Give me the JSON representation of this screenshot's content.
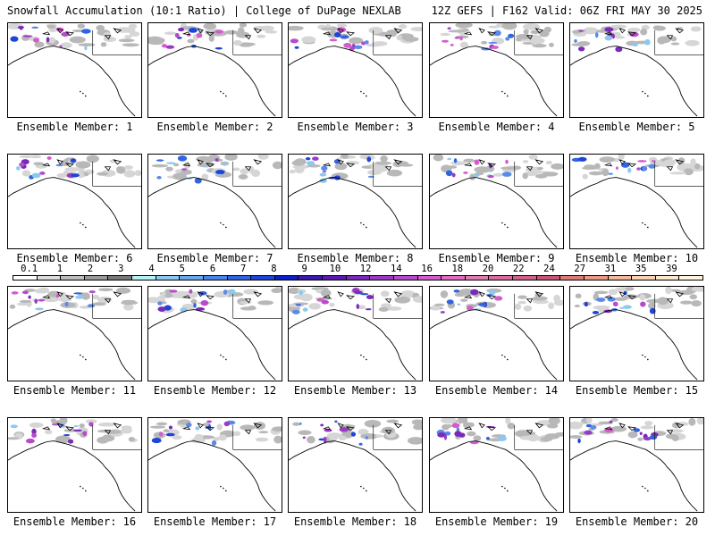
{
  "header": {
    "left_title": "Snowfall Accumulation (10:1 Ratio) | College of DuPage NEXLAB",
    "right_title": "12Z GEFS | F162 Valid: 06Z FRI MAY 30 2025"
  },
  "panels": [
    {
      "label": "Ensemble Member: 1"
    },
    {
      "label": "Ensemble Member: 2"
    },
    {
      "label": "Ensemble Member: 3"
    },
    {
      "label": "Ensemble Member: 4"
    },
    {
      "label": "Ensemble Member: 5"
    },
    {
      "label": "Ensemble Member: 6"
    },
    {
      "label": "Ensemble Member: 7"
    },
    {
      "label": "Ensemble Member: 8"
    },
    {
      "label": "Ensemble Member: 9"
    },
    {
      "label": "Ensemble Member: 10"
    },
    {
      "label": "Ensemble Member: 11"
    },
    {
      "label": "Ensemble Member: 12"
    },
    {
      "label": "Ensemble Member: 13"
    },
    {
      "label": "Ensemble Member: 14"
    },
    {
      "label": "Ensemble Member: 15"
    },
    {
      "label": "Ensemble Member: 16"
    },
    {
      "label": "Ensemble Member: 17"
    },
    {
      "label": "Ensemble Member: 18"
    },
    {
      "label": "Ensemble Member: 19"
    },
    {
      "label": "Ensemble Member: 20"
    }
  ],
  "legend": {
    "ticks": [
      "0.1",
      "1",
      "2",
      "3",
      "4",
      "5",
      "6",
      "7",
      "8",
      "9",
      "10",
      "12",
      "14",
      "16",
      "18",
      "20",
      "22",
      "24",
      "27",
      "31",
      "35",
      "39"
    ],
    "colors": [
      "#ffffff",
      "#dcdcdc",
      "#bdbdbd",
      "#9a9a9a",
      "#7a7a7a",
      "#b5f0f5",
      "#8cc8f0",
      "#6aa8ec",
      "#4a86e8",
      "#3064e0",
      "#1f44d8",
      "#0c1ec8",
      "#3a1aa8",
      "#5a1ab0",
      "#7a2ab8",
      "#9a3ac4",
      "#b84acc",
      "#d45ccc",
      "#e06cc0",
      "#e07cb0",
      "#dc6a9c",
      "#d2608c",
      "#c85478",
      "#dc7a7a",
      "#ec9a86",
      "#f4b89c",
      "#f8d2b4",
      "#fce6cc",
      "#fff4e0"
    ]
  }
}
